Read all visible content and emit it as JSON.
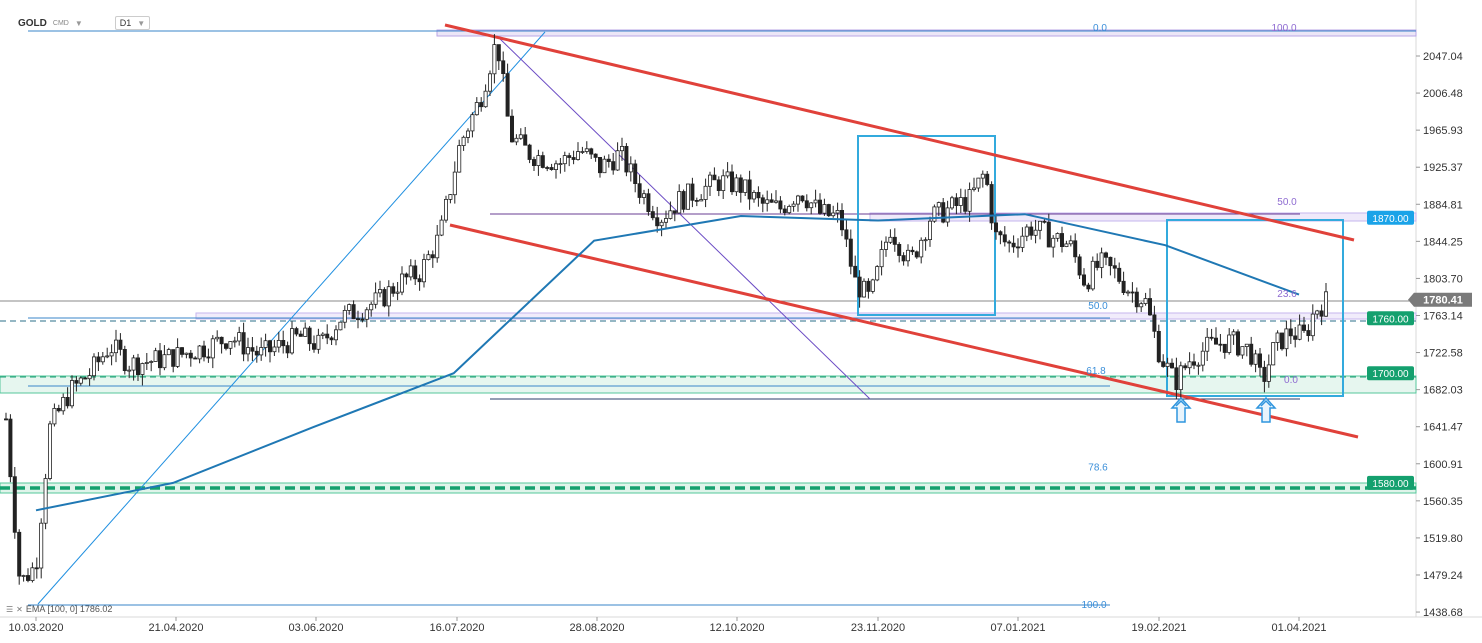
{
  "header": {
    "symbol": "GOLD",
    "source": "CMD",
    "timeframe": "D1"
  },
  "indicator": {
    "label": "EMA [100, 0] 1786.02"
  },
  "colors": {
    "up_candle": "#ffffff",
    "down_candle": "#222222",
    "ema": "#1f78b4",
    "channel": "#e0413a",
    "support_zone": "#14a06e",
    "resistance_price_box": "#1aa3e8",
    "box": "#33aadd",
    "fib_line": "#7b52c7",
    "fib_text_blue": "#3b8fd9",
    "current_price_bg": "#7a7a7a"
  },
  "chart_data": {
    "type": "candlestick",
    "instrument": "GOLD",
    "timeframe": "D1",
    "y_axis": {
      "ticks": [
        "2047.04",
        "2006.48",
        "1965.93",
        "1925.37",
        "1884.81",
        "1844.25",
        "1803.70",
        "1763.14",
        "1722.58",
        "1682.03",
        "1641.47",
        "1600.91",
        "1560.35",
        "1519.80",
        "1479.24",
        "1438.68"
      ],
      "range": [
        1432,
        2078
      ]
    },
    "x_axis": {
      "ticks": [
        "10.03.2020",
        "21.04.2020",
        "03.06.2020",
        "16.07.2020",
        "28.08.2020",
        "12.10.2020",
        "23.11.2020",
        "07.01.2021",
        "19.02.2021",
        "01.04.2021"
      ]
    },
    "price_labels": [
      {
        "value": "1870.00",
        "kind": "resistance"
      },
      {
        "value": "1780.41",
        "kind": "current"
      },
      {
        "value": "1760.00",
        "kind": "support"
      },
      {
        "value": "1700.00",
        "kind": "support"
      },
      {
        "value": "1580.00",
        "kind": "support"
      }
    ],
    "fib_first": {
      "labels": [
        {
          "text": "0.0",
          "price": 2071
        },
        {
          "text": "50.0",
          "price": 1767
        },
        {
          "text": "61.8",
          "price": 1696
        },
        {
          "text": "78.6",
          "price": 1590
        },
        {
          "text": "100.0",
          "price": 1440
        }
      ]
    },
    "fib_second": {
      "labels": [
        {
          "text": "100.0",
          "price": 2071
        },
        {
          "text": "50.0",
          "price": 1881
        },
        {
          "text": "23.6",
          "price": 1780
        },
        {
          "text": "0.0",
          "price": 1686
        }
      ]
    },
    "ema_label": "EMA [100, 0] 1786.02",
    "ema_points": [
      {
        "date": "2020-03-10",
        "price": 1550
      },
      {
        "date": "2020-04-21",
        "price": 1580
      },
      {
        "date": "2020-06-03",
        "price": 1641
      },
      {
        "date": "2020-07-16",
        "price": 1700
      },
      {
        "date": "2020-08-28",
        "price": 1845
      },
      {
        "date": "2020-10-12",
        "price": 1872
      },
      {
        "date": "2020-11-23",
        "price": 1867
      },
      {
        "date": "2021-01-07",
        "price": 1874
      },
      {
        "date": "2021-02-19",
        "price": 1840
      },
      {
        "date": "2021-04-01",
        "price": 1786
      }
    ]
  }
}
